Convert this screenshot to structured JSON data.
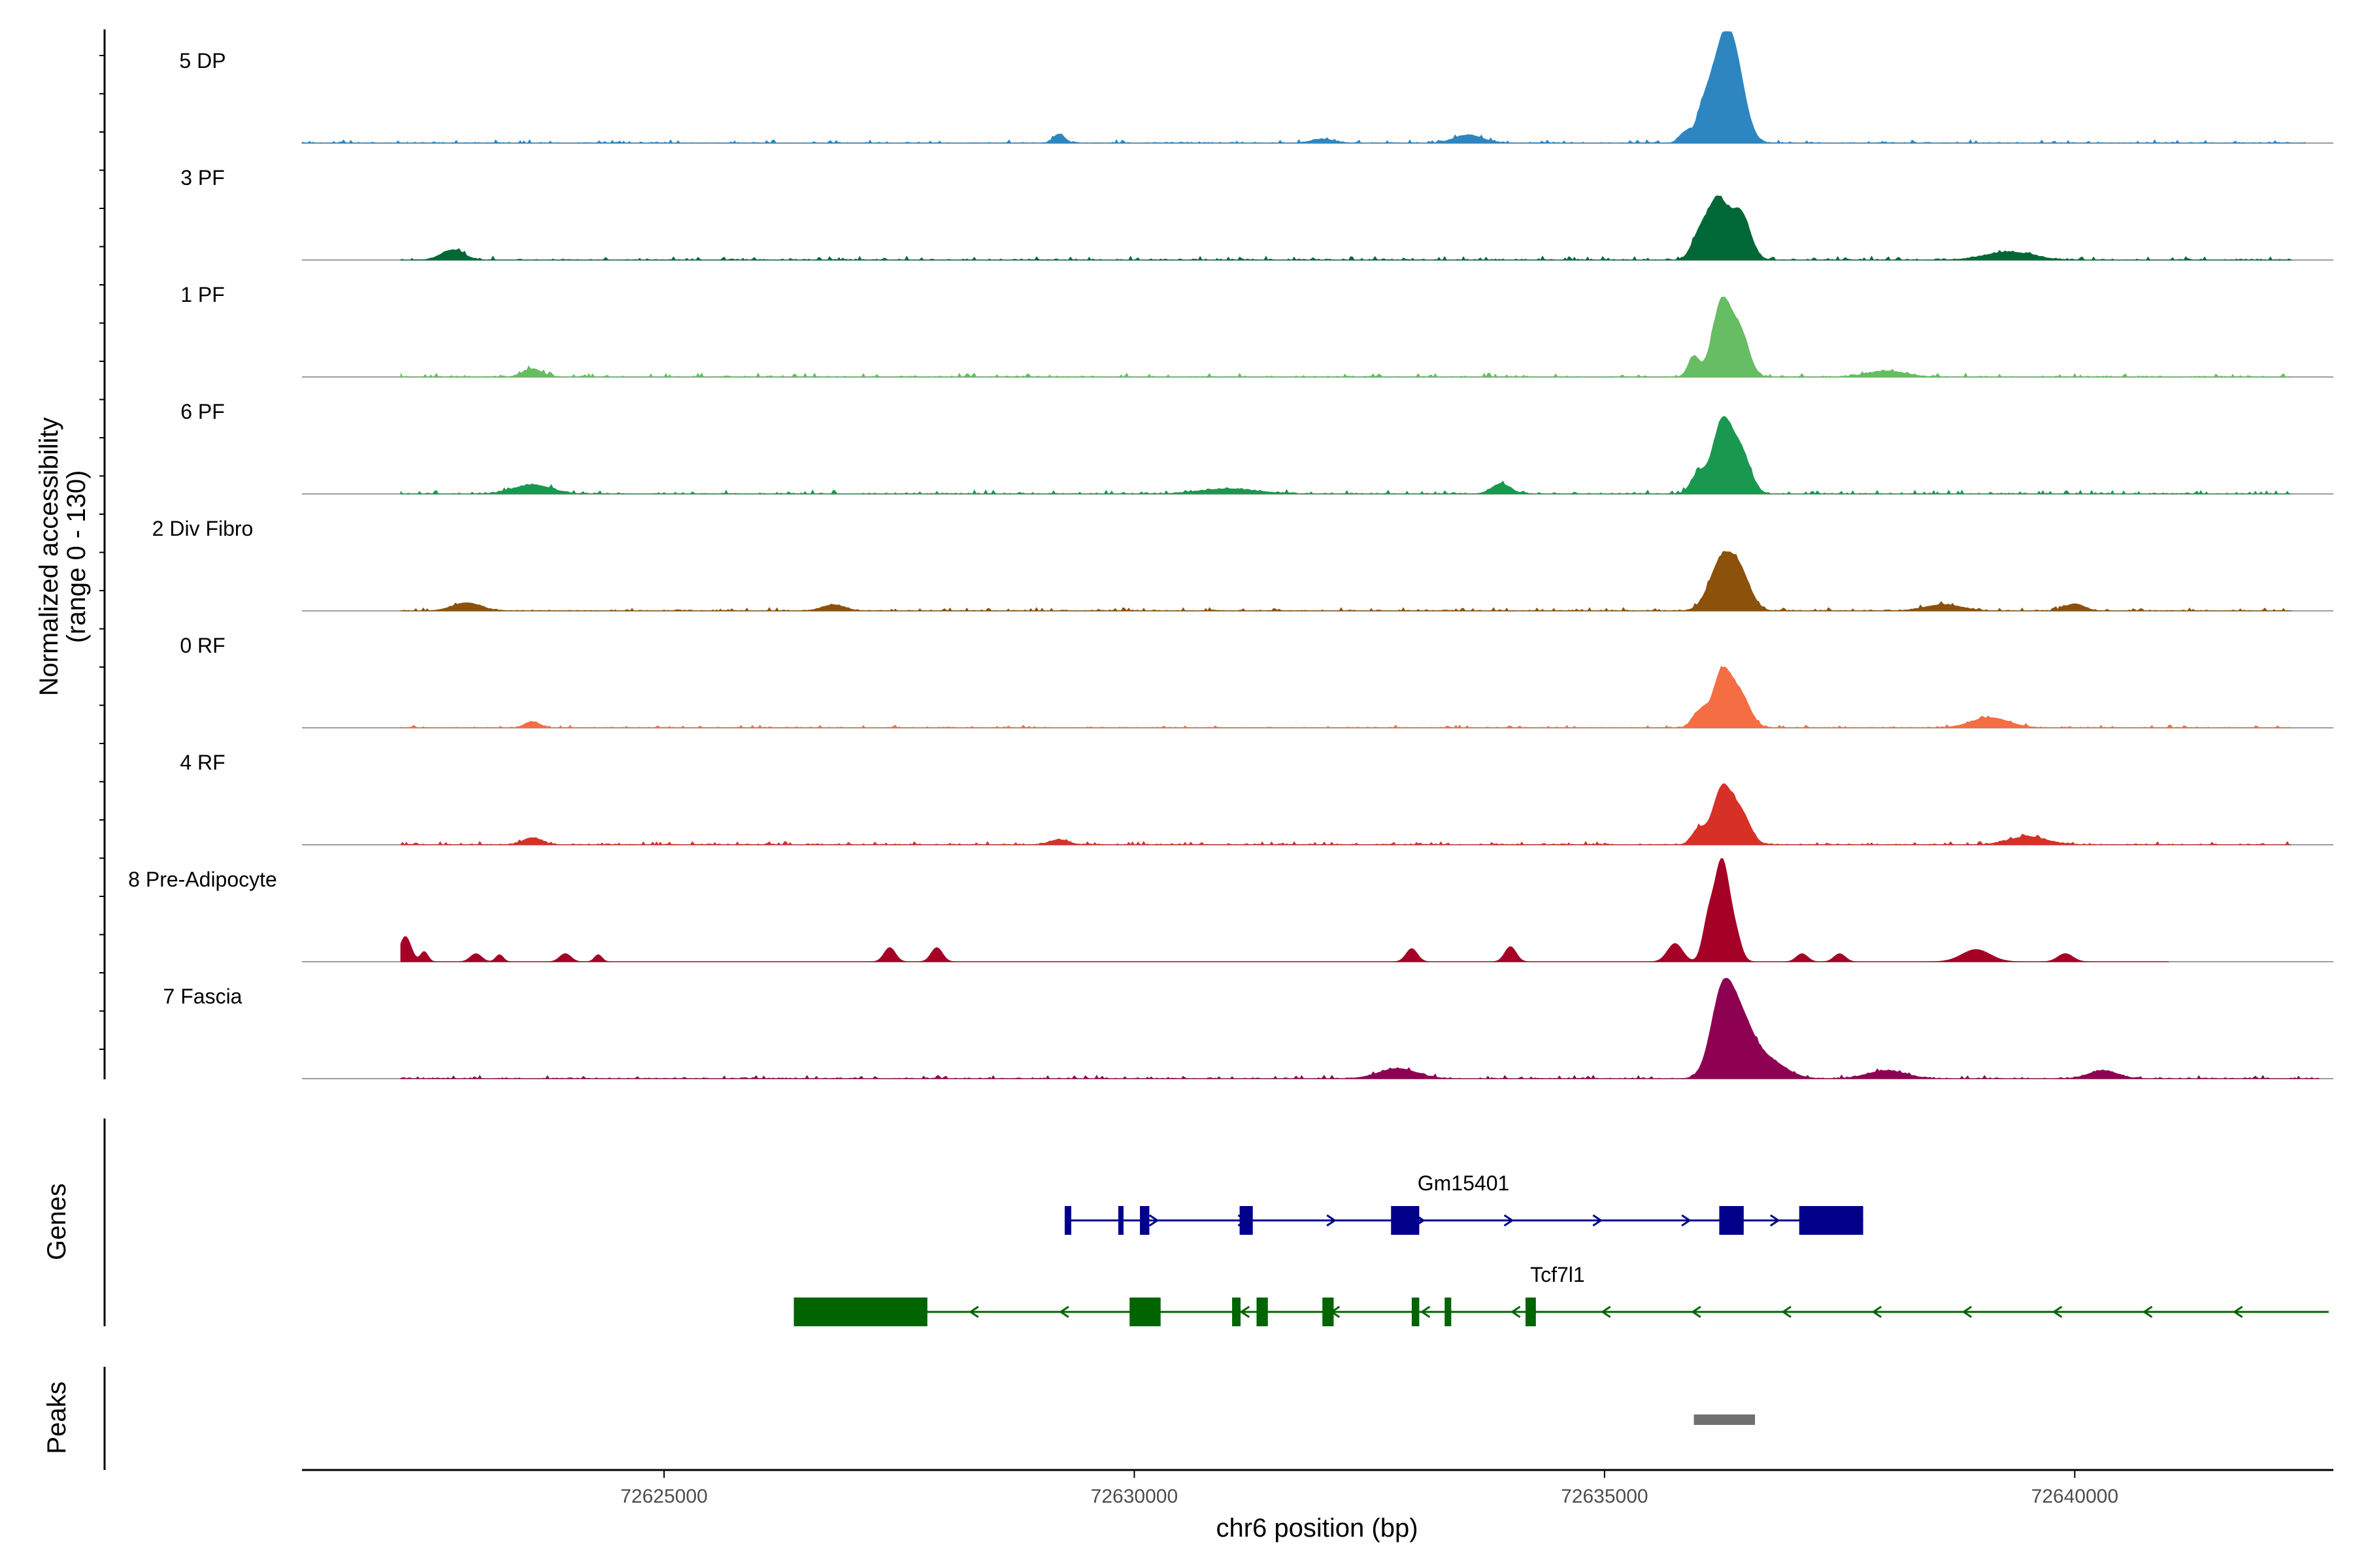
{
  "chart_data": {
    "type": "area",
    "title": "",
    "ylabel_line1": "Normalized accessibility",
    "ylabel_line2": "(range 0 - 130)",
    "y_range": [
      0,
      130
    ],
    "xlabel": "chr6 position (bp)",
    "x_range": [
      72621150,
      72642750
    ],
    "x_ticks": [
      72625000,
      72630000,
      72635000,
      72640000
    ],
    "x_tick_labels": [
      "72625000",
      "72630000",
      "72635000",
      "72640000"
    ],
    "tracks": [
      {
        "name": "5 DP",
        "color": "#2E86C1",
        "data_start": 72621150,
        "data_end": 72642450,
        "noise": 0.06,
        "seed": 11,
        "peaks": [
          [
            72636250,
            85,
            120
          ],
          [
            72636400,
            55,
            110
          ],
          [
            72636050,
            25,
            80
          ],
          [
            72635850,
            10,
            60
          ],
          [
            72633550,
            8,
            150
          ],
          [
            72629200,
            9,
            60
          ],
          [
            72632000,
            4,
            120
          ]
        ]
      },
      {
        "name": "3 PF",
        "color": "#006837",
        "data_start": 72622200,
        "data_end": 72642300,
        "noise": 0.07,
        "seed": 23,
        "peaks": [
          [
            72636200,
            60,
            110
          ],
          [
            72636450,
            45,
            100
          ],
          [
            72636000,
            20,
            80
          ],
          [
            72622750,
            10,
            120
          ],
          [
            72639300,
            8,
            250
          ]
        ]
      },
      {
        "name": "1 PF",
        "color": "#66BD63",
        "data_start": 72622200,
        "data_end": 72642300,
        "noise": 0.07,
        "seed": 37,
        "peaks": [
          [
            72636250,
            75,
            100
          ],
          [
            72636450,
            40,
            90
          ],
          [
            72635950,
            20,
            60
          ],
          [
            72623600,
            8,
            100
          ],
          [
            72638000,
            6,
            200
          ]
        ]
      },
      {
        "name": "6 PF",
        "color": "#1A9850",
        "data_start": 72622200,
        "data_end": 72642300,
        "noise": 0.07,
        "seed": 41,
        "peaks": [
          [
            72636250,
            70,
            100
          ],
          [
            72636450,
            40,
            100
          ],
          [
            72636000,
            20,
            80
          ],
          [
            72633900,
            10,
            100
          ],
          [
            72623600,
            9,
            200
          ],
          [
            72631000,
            5,
            300
          ]
        ]
      },
      {
        "name": "2 Div Fibro",
        "color": "#8C510A",
        "data_start": 72622200,
        "data_end": 72642300,
        "noise": 0.06,
        "seed": 53,
        "peaks": [
          [
            72636250,
            50,
            130
          ],
          [
            72636450,
            30,
            110
          ],
          [
            72622900,
            8,
            150
          ],
          [
            72626800,
            6,
            120
          ],
          [
            72638600,
            6,
            200
          ],
          [
            72640000,
            7,
            100
          ]
        ]
      },
      {
        "name": "0 RF",
        "color": "#F46D43",
        "data_start": 72622200,
        "data_end": 72642300,
        "noise": 0.05,
        "seed": 67,
        "peaks": [
          [
            72636250,
            55,
            100
          ],
          [
            72636450,
            30,
            100
          ],
          [
            72636000,
            15,
            70
          ],
          [
            72639100,
            10,
            200
          ],
          [
            72623600,
            6,
            80
          ]
        ]
      },
      {
        "name": "4 RF",
        "color": "#D73027",
        "data_start": 72622200,
        "data_end": 72642300,
        "noise": 0.06,
        "seed": 79,
        "peaks": [
          [
            72636250,
            55,
            100
          ],
          [
            72636450,
            30,
            100
          ],
          [
            72636000,
            15,
            70
          ],
          [
            72639500,
            8,
            200
          ],
          [
            72623600,
            7,
            100
          ],
          [
            72629200,
            5,
            100
          ]
        ]
      },
      {
        "name": "8 Pre-Adipocyte",
        "color": "#A50026",
        "data_start": 72622200,
        "data_end": 72641000,
        "noise": 0.0,
        "seed": 83,
        "peaks": [
          [
            72636250,
            100,
            80
          ],
          [
            72636100,
            35,
            60
          ],
          [
            72636400,
            20,
            60
          ],
          [
            72635750,
            18,
            80
          ],
          [
            72622250,
            25,
            60
          ],
          [
            72622450,
            10,
            40
          ],
          [
            72623000,
            8,
            60
          ],
          [
            72623250,
            7,
            40
          ],
          [
            72623950,
            8,
            60
          ],
          [
            72624300,
            7,
            40
          ],
          [
            72627400,
            14,
            60
          ],
          [
            72627900,
            14,
            60
          ],
          [
            72632950,
            13,
            60
          ],
          [
            72634000,
            15,
            60
          ],
          [
            72637100,
            8,
            60
          ],
          [
            72637500,
            8,
            60
          ],
          [
            72638950,
            12,
            150
          ],
          [
            72639900,
            8,
            80
          ]
        ]
      },
      {
        "name": "7 Fascia",
        "color": "#8E0152",
        "data_start": 72622200,
        "data_end": 72642600,
        "noise": 0.06,
        "seed": 97,
        "peaks": [
          [
            72636250,
            80,
            120
          ],
          [
            72636450,
            45,
            130
          ],
          [
            72636700,
            20,
            200
          ],
          [
            72632800,
            10,
            200
          ],
          [
            72638000,
            8,
            200
          ],
          [
            72640300,
            8,
            150
          ]
        ]
      }
    ],
    "genes": [
      {
        "name": "Gm15401",
        "color": "#00008B",
        "strand": "+",
        "start": 72629260,
        "end": 72637750,
        "exons": [
          [
            72629260,
            72629330
          ],
          [
            72629830,
            72629880
          ],
          [
            72630060,
            72630160
          ],
          [
            72631120,
            72631260
          ],
          [
            72632730,
            72633030
          ],
          [
            72636220,
            72636480
          ],
          [
            72637070,
            72637750
          ]
        ]
      },
      {
        "name": "Tcf7l1",
        "color": "#006400",
        "strand": "-",
        "start": 72626380,
        "end": 72642700,
        "exons": [
          [
            72626380,
            72627800
          ],
          [
            72629950,
            72630280
          ],
          [
            72631040,
            72631130
          ],
          [
            72631300,
            72631420
          ],
          [
            72632000,
            72632120
          ],
          [
            72632950,
            72633030
          ],
          [
            72633300,
            72633370
          ],
          [
            72634160,
            72634270
          ]
        ]
      }
    ],
    "peaks_track": [
      {
        "start": 72635950,
        "end": 72636600,
        "color": "#707070"
      }
    ],
    "panel_labels": {
      "genes": "Genes",
      "peaks": "Peaks"
    }
  }
}
